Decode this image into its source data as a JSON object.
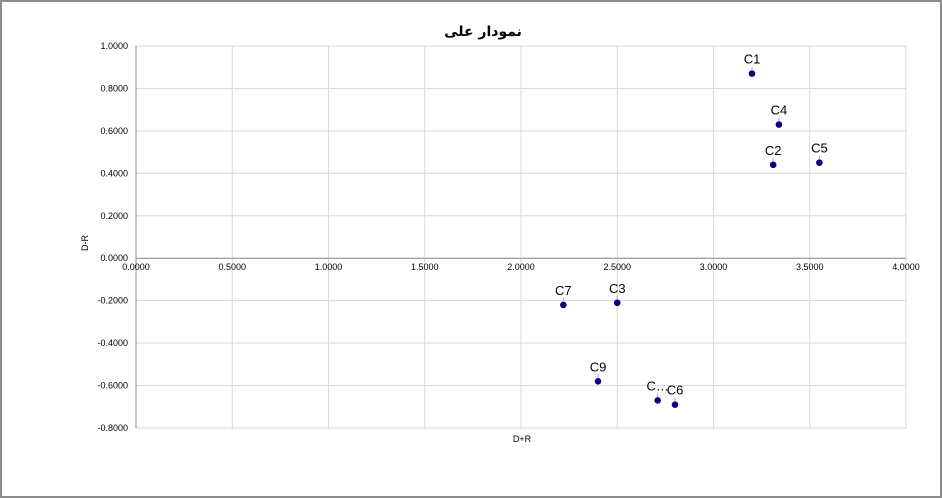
{
  "chart_data": {
    "type": "scatter",
    "title": "نمودار علی",
    "xlabel": "D+R",
    "ylabel": "D-R",
    "xlim": [
      0,
      4
    ],
    "ylim": [
      -0.8,
      1.0
    ],
    "x_ticks": [
      "0.0000",
      "0.5000",
      "1.0000",
      "1.5000",
      "2.0000",
      "2.5000",
      "3.0000",
      "3.5000",
      "4.0000"
    ],
    "y_ticks": [
      "1.0000",
      "0.8000",
      "0.6000",
      "0.4000",
      "0.2000",
      "0.0000",
      "-0.2000",
      "-0.4000",
      "-0.6000",
      "-0.8000"
    ],
    "grid": true,
    "marker_color": "#00008b",
    "points": [
      {
        "label": "C1",
        "x": 3.2,
        "y": 0.87
      },
      {
        "label": "C4",
        "x": 3.34,
        "y": 0.63
      },
      {
        "label": "C2",
        "x": 3.31,
        "y": 0.44
      },
      {
        "label": "C5",
        "x": 3.55,
        "y": 0.45
      },
      {
        "label": "C7",
        "x": 2.22,
        "y": -0.22
      },
      {
        "label": "C3",
        "x": 2.5,
        "y": -0.21
      },
      {
        "label": "C9",
        "x": 2.4,
        "y": -0.58
      },
      {
        "label": "C…",
        "x": 2.71,
        "y": -0.67
      },
      {
        "label": "C6",
        "x": 2.8,
        "y": -0.69
      }
    ]
  }
}
